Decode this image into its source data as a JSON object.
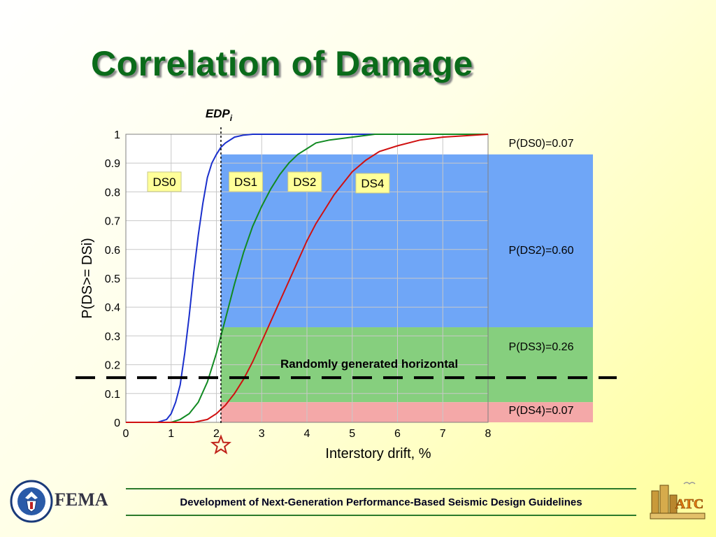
{
  "title": "Correlation of Damage",
  "footer": "Development of Next-Generation Performance-Based Seismic Design Guidelines",
  "logos": {
    "left_text": "FEMA",
    "right_text": "ATC"
  },
  "chart_data": {
    "type": "line",
    "xlabel": "Interstory drift, %",
    "ylabel": "P(DS>= DSi)",
    "xlim": [
      0,
      8
    ],
    "ylim": [
      0,
      1
    ],
    "x_ticks": [
      "0",
      "1",
      "2",
      "3",
      "4",
      "5",
      "6",
      "7",
      "8"
    ],
    "y_ticks": [
      "0",
      "0.1",
      "0.2",
      "0.3",
      "0.4",
      "0.5",
      "0.6",
      "0.7",
      "0.8",
      "0.9",
      "1"
    ],
    "grid": true,
    "series": [
      {
        "name": "DS0",
        "color": "#1a2fcc",
        "x": [
          0,
          0.7,
          0.9,
          1.0,
          1.1,
          1.2,
          1.3,
          1.4,
          1.5,
          1.6,
          1.7,
          1.8,
          1.9,
          2.0,
          2.1,
          2.2,
          2.4,
          2.6,
          2.8,
          3.0,
          8
        ],
        "y": [
          0,
          0,
          0.01,
          0.03,
          0.07,
          0.13,
          0.24,
          0.37,
          0.52,
          0.65,
          0.76,
          0.85,
          0.9,
          0.93,
          0.955,
          0.97,
          0.99,
          0.997,
          1,
          1,
          1
        ]
      },
      {
        "name": "DS1",
        "color": "#118a22",
        "x": [
          0,
          1.0,
          1.2,
          1.4,
          1.6,
          1.8,
          2.0,
          2.2,
          2.4,
          2.6,
          2.8,
          3.0,
          3.2,
          3.4,
          3.6,
          3.8,
          4.0,
          4.2,
          4.5,
          5.0,
          5.5,
          6.0,
          7.0,
          8.0
        ],
        "y": [
          0,
          0,
          0.01,
          0.03,
          0.07,
          0.14,
          0.24,
          0.36,
          0.48,
          0.59,
          0.68,
          0.75,
          0.81,
          0.86,
          0.9,
          0.93,
          0.95,
          0.97,
          0.98,
          0.99,
          1,
          1,
          1,
          1
        ]
      },
      {
        "name": "DS4",
        "color": "#d01010",
        "x": [
          0,
          1.5,
          1.8,
          2.0,
          2.2,
          2.4,
          2.6,
          2.8,
          3.0,
          3.2,
          3.4,
          3.6,
          3.8,
          4.0,
          4.2,
          4.4,
          4.6,
          4.8,
          5.0,
          5.3,
          5.6,
          6.0,
          6.5,
          7.0,
          7.5,
          8.0
        ],
        "y": [
          0,
          0,
          0.01,
          0.03,
          0.06,
          0.1,
          0.15,
          0.21,
          0.28,
          0.35,
          0.42,
          0.49,
          0.56,
          0.63,
          0.69,
          0.74,
          0.79,
          0.83,
          0.87,
          0.91,
          0.94,
          0.96,
          0.98,
          0.99,
          0.995,
          1
        ]
      }
    ],
    "edp": {
      "label": "EDP",
      "subscript": "i",
      "x": 2.1
    },
    "bands": [
      {
        "label": "P(DS0)=0.07",
        "y0": 0.93,
        "y1": 1.0,
        "color": null
      },
      {
        "label": "P(DS2)=0.60",
        "y0": 0.33,
        "y1": 0.93,
        "color": "#6fa6f7"
      },
      {
        "label": "P(DS3)=0.26",
        "y0": 0.07,
        "y1": 0.33,
        "color": "#86cf7e"
      },
      {
        "label": "P(DS4)=0.07",
        "y0": 0.0,
        "y1": 0.07,
        "color": "#f4a8a8"
      }
    ],
    "box_labels": [
      {
        "text": "DS0",
        "x": 0.85,
        "y": 0.835
      },
      {
        "text": "DS1",
        "x": 2.65,
        "y": 0.835
      },
      {
        "text": "DS2",
        "x": 3.95,
        "y": 0.835
      },
      {
        "text": "DS4",
        "x": 5.45,
        "y": 0.83
      }
    ],
    "random_line": {
      "label": "Randomly generated horizontal",
      "y": 0.155
    }
  }
}
